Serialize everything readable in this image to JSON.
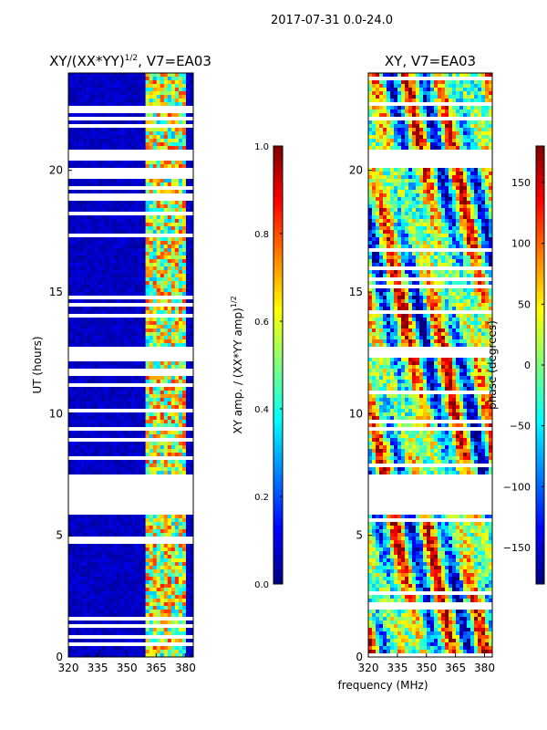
{
  "figure_title": "2017-07-31 0.0-24.0",
  "xlabel_shared": "frequency (MHz)",
  "colors": {
    "jet": [
      "#00007f",
      "#0000ff",
      "#007fff",
      "#00ffff",
      "#7fff7f",
      "#ffff00",
      "#ff7f00",
      "#ff0000",
      "#7f0000"
    ],
    "nodata": "#ffffff",
    "axes": "#000000"
  },
  "chart_data": [
    {
      "type": "heatmap",
      "title": "XY/(XX*YY)",
      "title_power": "1/2",
      "title_suffix": ", V7=EA03",
      "xlabel": "",
      "ylabel": "UT (hours)",
      "xlim": [
        320,
        384
      ],
      "ylim": [
        0,
        24
      ],
      "xticks": [
        320,
        335,
        350,
        365,
        380
      ],
      "yticks": [
        0,
        5,
        10,
        15,
        20
      ],
      "quantity": "amplitude",
      "colorbar": {
        "label": "XY amp. / (XX*YY amp)",
        "label_power": "1/2",
        "range": [
          0.0,
          1.0
        ],
        "ticks": [
          "0.0",
          "0.2",
          "0.4",
          "0.6",
          "0.8",
          "1.0"
        ],
        "tick_values": [
          0.0,
          0.2,
          0.4,
          0.6,
          0.8,
          1.0
        ]
      },
      "gaps_ut": [
        [
          5.8,
          7.5
        ],
        [
          12.3,
          12.8
        ],
        [
          20.4,
          20.8
        ]
      ],
      "active_band_mhz": [
        360,
        380
      ]
    },
    {
      "type": "heatmap",
      "title": "XY, V7=EA03",
      "xlabel": "frequency (MHz)",
      "ylabel": "",
      "xlim": [
        320,
        384
      ],
      "ylim": [
        0,
        24
      ],
      "xticks": [
        320,
        335,
        350,
        365,
        380
      ],
      "yticks": [
        0,
        5,
        10,
        15,
        20
      ],
      "quantity": "phase",
      "colorbar": {
        "label": "phase (degrees)",
        "range": [
          -180,
          180
        ],
        "ticks": [
          "−150",
          "−100",
          "−50",
          "0",
          "50",
          "100",
          "150"
        ],
        "tick_values": [
          -150,
          -100,
          -50,
          0,
          50,
          100,
          150
        ]
      },
      "gaps_ut": [
        [
          5.8,
          7.5
        ],
        [
          12.3,
          12.8
        ],
        [
          20.4,
          20.8
        ]
      ]
    }
  ]
}
